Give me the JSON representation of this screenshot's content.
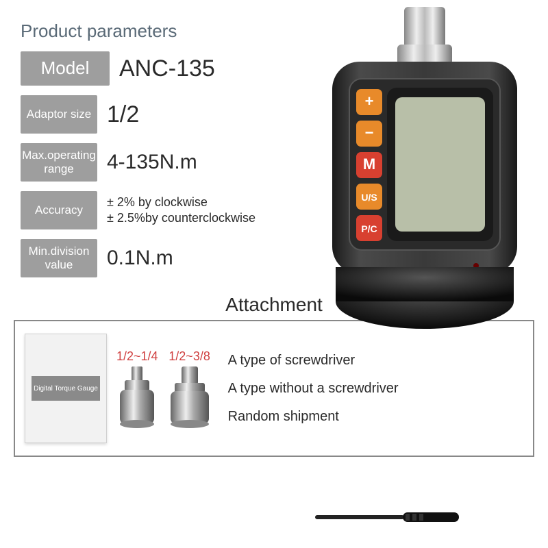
{
  "title": "Product parameters",
  "params": [
    {
      "label": "Model",
      "value": "ANC-135",
      "labelSize": "big",
      "valueSize": "34px"
    },
    {
      "label": "Adaptor size",
      "value": "1/2",
      "labelSize": "small",
      "valueSize": "34px"
    },
    {
      "label": "Max.operating range",
      "value": "4-135N.m",
      "labelSize": "small",
      "valueSize": "30px"
    },
    {
      "label": "Accuracy",
      "value": "± 2% by clockwise\n± 2.5%by counterclockwise",
      "labelSize": "small",
      "multi": true
    },
    {
      "label": "Min.division value",
      "value": "0.1N.m",
      "labelSize": "small",
      "valueSize": "30px"
    }
  ],
  "attachment": {
    "title": "Attachment",
    "manual": "Digital Torque Gauge",
    "adapters": [
      {
        "label": "1/2~1/4"
      },
      {
        "label": "1/2~3/8"
      }
    ],
    "notes": [
      "A type of screwdriver",
      "A type without a screwdriver",
      "Random shipment"
    ]
  },
  "device": {
    "buttons": [
      "+",
      "−",
      "M",
      "U/S",
      "P/C"
    ],
    "button_colors": [
      "#e88a2a",
      "#e88a2a",
      "#d84030",
      "#e88a2a",
      "#d84030"
    ],
    "body_color": "#3a3a3a",
    "screen_color": "#b8bfa8"
  }
}
